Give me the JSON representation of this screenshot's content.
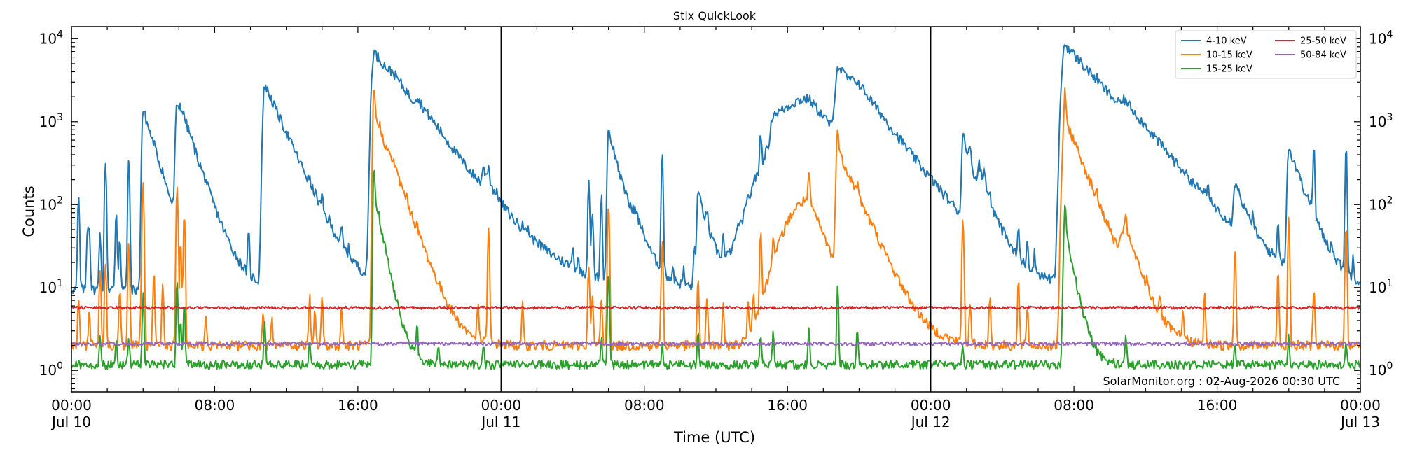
{
  "chart_data": {
    "type": "line",
    "title": "Stix QuickLook",
    "xlabel": "Time (UTC)",
    "ylabel": "Counts",
    "yscale": "log",
    "ylim": [
      0.55,
      14000
    ],
    "xlim_hours": [
      0,
      72
    ],
    "x_unit": "hours since Jul 10 00:00 UTC",
    "grid": false,
    "legend_position": "top-right",
    "y_ticks": [
      {
        "value": 1,
        "base": "10",
        "exp": "0"
      },
      {
        "value": 10,
        "base": "10",
        "exp": "1"
      },
      {
        "value": 100,
        "base": "10",
        "exp": "2"
      },
      {
        "value": 1000,
        "base": "10",
        "exp": "3"
      },
      {
        "value": 10000,
        "base": "10",
        "exp": "4"
      }
    ],
    "x_ticks": [
      {
        "hour": 0,
        "time": "00:00",
        "date": "Jul 10"
      },
      {
        "hour": 8,
        "time": "08:00",
        "date": ""
      },
      {
        "hour": 16,
        "time": "16:00",
        "date": ""
      },
      {
        "hour": 24,
        "time": "00:00",
        "date": "Jul 11"
      },
      {
        "hour": 32,
        "time": "08:00",
        "date": ""
      },
      {
        "hour": 40,
        "time": "16:00",
        "date": ""
      },
      {
        "hour": 48,
        "time": "00:00",
        "date": "Jul 12"
      },
      {
        "hour": 56,
        "time": "08:00",
        "date": ""
      },
      {
        "hour": 64,
        "time": "16:00",
        "date": ""
      },
      {
        "hour": 72,
        "time": "00:00",
        "date": "Jul 13"
      }
    ],
    "day_boundaries_hours": [
      24,
      48
    ],
    "annotation": "SolarMonitor.org : 02-Aug-2026 00:30 UTC",
    "series": [
      {
        "name": "4-10 keV",
        "color": "#1f77b4",
        "baseline": 9.5,
        "peaks": [
          [
            0.4,
            120
          ],
          [
            0.9,
            55
          ],
          [
            1.0,
            50
          ],
          [
            1.6,
            50
          ],
          [
            1.9,
            350
          ],
          [
            2.5,
            85
          ],
          [
            2.7,
            42
          ],
          [
            3.2,
            350
          ],
          [
            3.9,
            33
          ],
          [
            4.1,
            30
          ],
          [
            4.6,
            60
          ],
          [
            4.8,
            38
          ],
          [
            5.1,
            30
          ],
          [
            5.1,
            25
          ],
          [
            6.0,
            45
          ],
          [
            6.3,
            30
          ],
          [
            6.7,
            30
          ],
          [
            7.5,
            25
          ],
          [
            9.9,
            40
          ],
          [
            11.2,
            25
          ],
          [
            12.0,
            25
          ],
          [
            12.5,
            20
          ],
          [
            13.0,
            17
          ],
          [
            13.3,
            35
          ],
          [
            13.6,
            20
          ],
          [
            14.0,
            45
          ],
          [
            14.4,
            15
          ],
          [
            15.1,
            30
          ],
          [
            15.5,
            15
          ],
          [
            18.0,
            50
          ],
          [
            18.7,
            35
          ],
          [
            20.4,
            15
          ],
          [
            21.0,
            12
          ],
          [
            22.7,
            25
          ],
          [
            23.3,
            130
          ],
          [
            23.8,
            25
          ],
          [
            25.2,
            25
          ],
          [
            25.5,
            20
          ],
          [
            26.0,
            15
          ],
          [
            28.0,
            25
          ],
          [
            28.3,
            15
          ],
          [
            28.9,
            200
          ],
          [
            29.1,
            80
          ],
          [
            29.6,
            130
          ],
          [
            31.0,
            45
          ],
          [
            33.0,
            400
          ],
          [
            33.6,
            15
          ],
          [
            34.2,
            15
          ],
          [
            34.8,
            30
          ],
          [
            35.5,
            35
          ],
          [
            36.4,
            30
          ],
          [
            37.2,
            25
          ],
          [
            37.8,
            30
          ],
          [
            38.1,
            45
          ],
          [
            38.5,
            480
          ],
          [
            38.9,
            15
          ],
          [
            39.4,
            15
          ],
          [
            40.6,
            20
          ],
          [
            41.5,
            40
          ],
          [
            42.2,
            25
          ],
          [
            42.6,
            20
          ],
          [
            44.2,
            25
          ],
          [
            44.8,
            20
          ],
          [
            50.2,
            140
          ],
          [
            50.7,
            110
          ],
          [
            51.0,
            120
          ],
          [
            51.3,
            40
          ],
          [
            52.1,
            25
          ],
          [
            52.9,
            40
          ],
          [
            53.4,
            30
          ],
          [
            53.8,
            20
          ],
          [
            55.8,
            25
          ],
          [
            56.2,
            35
          ],
          [
            57.3,
            200
          ],
          [
            58.8,
            25
          ],
          [
            60.1,
            60
          ],
          [
            60.8,
            30
          ],
          [
            60.5,
            35
          ],
          [
            61.5,
            20
          ],
          [
            62.1,
            35
          ],
          [
            63.3,
            40
          ],
          [
            63.5,
            55
          ],
          [
            66.0,
            35
          ],
          [
            67.4,
            55
          ],
          [
            68.5,
            30
          ],
          [
            69.4,
            450
          ],
          [
            69.2,
            20
          ],
          [
            70.4,
            20
          ],
          [
            71.2,
            490
          ],
          [
            71.6,
            20
          ]
        ],
        "flares": [
          [
            4.0,
            1400,
            0.08,
            0.6
          ],
          [
            5.9,
            1550,
            0.1,
            0.7
          ],
          [
            6.1,
            350,
            0.1,
            0.5
          ],
          [
            10.8,
            2800,
            0.12,
            0.9
          ],
          [
            16.9,
            7000,
            0.15,
            1.5
          ],
          [
            18.0,
            500,
            0.3,
            0.9
          ],
          [
            19.3,
            450,
            0.15,
            0.7
          ],
          [
            20.5,
            90,
            0.8,
            2.5
          ],
          [
            23.0,
            120,
            0.1,
            0.5
          ],
          [
            30.0,
            800,
            0.08,
            0.5
          ],
          [
            31.5,
            45,
            0.3,
            0.7
          ],
          [
            35.0,
            140,
            0.08,
            0.5
          ],
          [
            39.2,
            600,
            0.15,
            1.0
          ],
          [
            41.2,
            1800,
            2.0,
            1.7
          ],
          [
            42.8,
            4000,
            0.15,
            1.6
          ],
          [
            43.9,
            700,
            0.3,
            1.0
          ],
          [
            49.8,
            650,
            0.08,
            0.5
          ],
          [
            50.7,
            140,
            0.08,
            0.6
          ],
          [
            55.5,
            8500,
            0.2,
            1.8
          ],
          [
            58.9,
            510,
            0.3,
            1.1
          ],
          [
            65.0,
            150,
            0.1,
            0.5
          ],
          [
            68.0,
            480,
            0.1,
            0.7
          ]
        ]
      },
      {
        "name": "10-15 keV",
        "color": "#ff7f0e",
        "baseline": 2.0,
        "peaks": [
          [
            0.4,
            8
          ],
          [
            1.0,
            5
          ],
          [
            1.6,
            15
          ],
          [
            1.9,
            20
          ],
          [
            2.7,
            9
          ],
          [
            3.2,
            35
          ],
          [
            3.9,
            6
          ],
          [
            4.0,
            170
          ],
          [
            4.6,
            15
          ],
          [
            5.1,
            12
          ],
          [
            5.9,
            180
          ],
          [
            6.1,
            35
          ],
          [
            6.3,
            70
          ],
          [
            7.5,
            4
          ],
          [
            10.7,
            5
          ],
          [
            11.2,
            4
          ],
          [
            13.3,
            8
          ],
          [
            13.6,
            5
          ],
          [
            14.0,
            8
          ],
          [
            15.1,
            6
          ],
          [
            16.9,
            1400
          ],
          [
            17.2,
            110
          ],
          [
            18.0,
            40
          ],
          [
            18.7,
            15
          ],
          [
            19.3,
            8
          ],
          [
            22.7,
            6
          ],
          [
            23.3,
            50
          ],
          [
            25.2,
            6
          ],
          [
            28.9,
            20
          ],
          [
            29.1,
            8
          ],
          [
            29.6,
            8
          ],
          [
            30.0,
            110
          ],
          [
            33.0,
            35
          ],
          [
            35.0,
            12
          ],
          [
            35.5,
            8
          ],
          [
            36.4,
            6
          ],
          [
            37.8,
            6
          ],
          [
            38.1,
            8
          ],
          [
            38.5,
            50
          ],
          [
            39.2,
            28
          ],
          [
            41.2,
            115
          ],
          [
            42.8,
            480
          ],
          [
            43.9,
            50
          ],
          [
            44.8,
            6
          ],
          [
            49.8,
            70
          ],
          [
            50.2,
            6
          ],
          [
            51.3,
            8
          ],
          [
            52.9,
            12
          ],
          [
            53.4,
            6
          ],
          [
            55.5,
            1200
          ],
          [
            56.2,
            10
          ],
          [
            57.3,
            20
          ],
          [
            58.9,
            35
          ],
          [
            60.1,
            5
          ],
          [
            60.8,
            6
          ],
          [
            62.1,
            5
          ],
          [
            63.3,
            8
          ],
          [
            65.0,
            30
          ],
          [
            67.4,
            15
          ],
          [
            68.0,
            70
          ],
          [
            69.4,
            10
          ],
          [
            71.2,
            60
          ]
        ],
        "flares": [
          [
            16.9,
            1300,
            0.08,
            0.7
          ],
          [
            18.0,
            40,
            0.3,
            0.8
          ],
          [
            41.2,
            115,
            1.5,
            0.8
          ],
          [
            42.8,
            450,
            0.1,
            0.9
          ],
          [
            55.5,
            1100,
            0.15,
            0.8
          ],
          [
            58.9,
            35,
            0.3,
            0.6
          ]
        ]
      },
      {
        "name": "15-25 keV",
        "color": "#2ca02c",
        "baseline": 1.18,
        "peaks": [
          [
            1.6,
            2.5
          ],
          [
            2.5,
            2.5
          ],
          [
            3.2,
            2.5
          ],
          [
            4.0,
            8
          ],
          [
            5.9,
            12
          ],
          [
            6.1,
            4
          ],
          [
            6.3,
            6
          ],
          [
            10.8,
            4
          ],
          [
            13.3,
            2
          ],
          [
            16.9,
            150
          ],
          [
            17.2,
            5
          ],
          [
            19.3,
            3.5
          ],
          [
            20.5,
            2
          ],
          [
            23.0,
            2
          ],
          [
            29.6,
            2.5
          ],
          [
            30.0,
            15
          ],
          [
            33.0,
            2
          ],
          [
            35.0,
            3
          ],
          [
            38.5,
            3
          ],
          [
            39.2,
            3
          ],
          [
            41.2,
            3
          ],
          [
            42.8,
            10
          ],
          [
            43.9,
            3
          ],
          [
            49.8,
            2
          ],
          [
            55.5,
            55
          ],
          [
            55.8,
            3
          ],
          [
            58.9,
            2.5
          ],
          [
            65.0,
            2
          ],
          [
            68.0,
            2.5
          ],
          [
            71.2,
            2
          ]
        ],
        "flares": [
          [
            16.9,
            140,
            0.06,
            0.4
          ],
          [
            55.5,
            50,
            0.1,
            0.4
          ]
        ]
      },
      {
        "name": "25-50 keV",
        "color": "#d62728",
        "baseline": 5.7,
        "peaks": [],
        "flares": []
      },
      {
        "name": "50-84 keV",
        "color": "#9467bd",
        "baseline": 2.1,
        "peaks": [],
        "flares": []
      }
    ]
  }
}
